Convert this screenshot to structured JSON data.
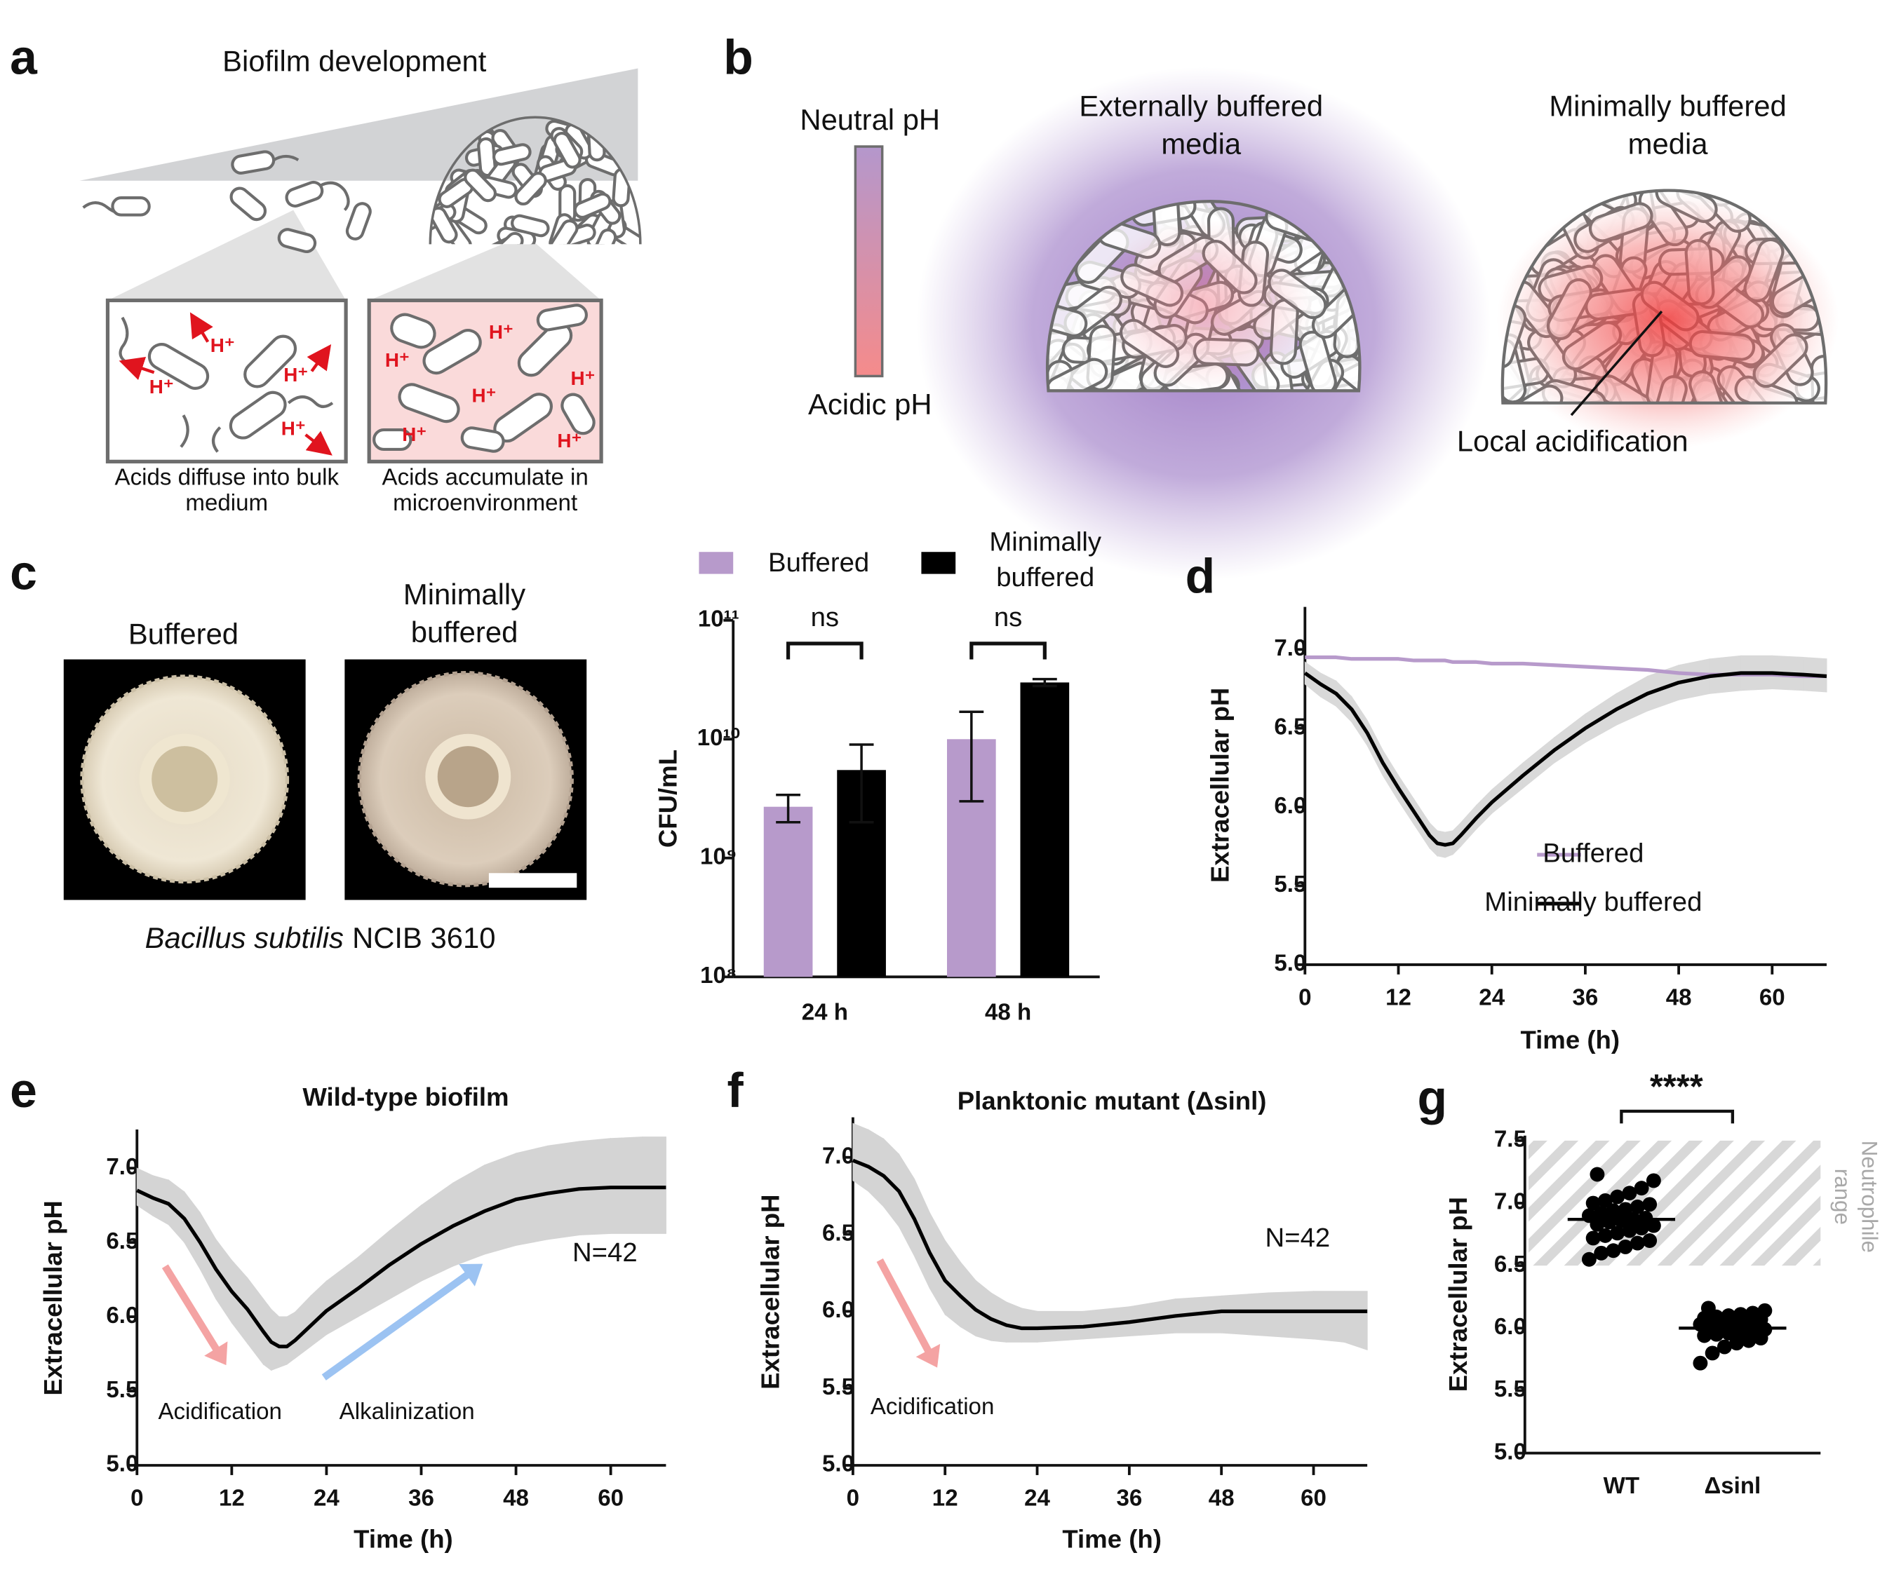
{
  "panels": {
    "a": {
      "label": "a",
      "title": "Biofilm development",
      "proton": "H⁺",
      "captions": [
        "Acids diffuse into bulk medium",
        "Acids accumulate in microenvironment"
      ]
    },
    "b": {
      "label": "b",
      "scale_top": "Neutral pH",
      "scale_bottom": "Acidic pH",
      "conditions": [
        "Externally buffered media",
        "Minimally buffered media"
      ],
      "annotation": "Local acidification"
    },
    "c": {
      "label": "c",
      "images": [
        "Buffered",
        "Minimally buffered"
      ],
      "species": "Bacillus subtilis",
      "strain": "NCIB 3610"
    },
    "d": {
      "label": "d"
    },
    "e": {
      "label": "e"
    },
    "f": {
      "label": "f"
    },
    "g": {
      "label": "g"
    }
  },
  "chart_data": [
    {
      "type": "bar",
      "log_scale": true,
      "ylabel": "CFU/mL",
      "categories": [
        "24 h",
        "48 h"
      ],
      "series": [
        {
          "name": "Buffered",
          "color": "#b79acb",
          "values": [
            2700000000,
            10000000000
          ],
          "errors": [
            700000000,
            7000000000
          ]
        },
        {
          "name": "Minimally buffered",
          "color": "#000000",
          "values": [
            5500000000,
            30000000000
          ],
          "errors": [
            3500000000,
            2000000000
          ]
        }
      ],
      "ylim": [
        100000000,
        100000000000
      ],
      "yticks": [
        {
          "value": 100000000,
          "label": "10⁸"
        },
        {
          "value": 1000000000,
          "label": "10⁹"
        },
        {
          "value": 10000000000,
          "label": "10¹⁰"
        },
        {
          "value": 100000000000,
          "label": "10¹¹"
        }
      ],
      "comparisons": [
        "ns",
        "ns"
      ],
      "legend": "top"
    },
    {
      "type": "line",
      "xlabel": "Time (h)",
      "ylabel": "Extracellular pH",
      "x": [
        0,
        2,
        4,
        6,
        8,
        10,
        12,
        14,
        16,
        17,
        18,
        19,
        20,
        22,
        24,
        28,
        32,
        36,
        40,
        44,
        48,
        52,
        56,
        60,
        64,
        67
      ],
      "series": [
        {
          "name": "Buffered",
          "color": "#b79acb",
          "values": [
            6.95,
            6.95,
            6.95,
            6.94,
            6.94,
            6.94,
            6.94,
            6.93,
            6.93,
            6.93,
            6.93,
            6.92,
            6.92,
            6.92,
            6.91,
            6.91,
            6.9,
            6.89,
            6.88,
            6.87,
            6.85,
            6.84,
            6.84,
            6.84,
            6.83,
            6.83
          ]
        },
        {
          "name": "Minimally buffered",
          "color": "#000000",
          "values": [
            6.85,
            6.78,
            6.72,
            6.62,
            6.47,
            6.28,
            6.12,
            5.97,
            5.82,
            5.77,
            5.76,
            5.77,
            5.82,
            5.93,
            6.03,
            6.2,
            6.36,
            6.5,
            6.62,
            6.72,
            6.79,
            6.83,
            6.85,
            6.85,
            6.84,
            6.83
          ],
          "envelope": {
            "color": "#d9d9d9",
            "low": [
              6.78,
              6.7,
              6.64,
              6.54,
              6.39,
              6.2,
              6.04,
              5.89,
              5.74,
              5.69,
              5.68,
              5.7,
              5.75,
              5.86,
              5.96,
              6.12,
              6.28,
              6.41,
              6.52,
              6.61,
              6.68,
              6.72,
              6.74,
              6.75,
              6.74,
              6.73
            ],
            "high": [
              6.92,
              6.85,
              6.8,
              6.7,
              6.55,
              6.36,
              6.2,
              6.05,
              5.9,
              5.85,
              5.84,
              5.85,
              5.9,
              6.01,
              6.11,
              6.28,
              6.44,
              6.59,
              6.72,
              6.83,
              6.9,
              6.94,
              6.96,
              6.96,
              6.95,
              6.94
            ]
          }
        }
      ],
      "xlim": [
        0,
        67
      ],
      "ylim": [
        5,
        7.27
      ],
      "xticks": [
        0,
        12,
        24,
        36,
        48,
        60
      ],
      "yticks": [
        {
          "value": 5,
          "label": "5.0"
        },
        5.5,
        {
          "value": 6,
          "label": "6.0"
        },
        6.5,
        {
          "value": 7,
          "label": "7.0"
        }
      ],
      "legend": "lower right"
    },
    {
      "type": "line",
      "title": "Wild-type biofilm",
      "xlabel": "Time (h)",
      "ylabel": "Extracellular pH",
      "x": [
        0,
        2,
        4,
        6,
        8,
        10,
        12,
        14,
        16,
        17,
        18,
        19,
        20,
        22,
        24,
        28,
        32,
        36,
        40,
        44,
        48,
        52,
        56,
        60,
        64,
        67
      ],
      "series": [
        {
          "color": "#000000",
          "values": [
            6.85,
            6.8,
            6.76,
            6.66,
            6.5,
            6.32,
            6.17,
            6.05,
            5.9,
            5.83,
            5.8,
            5.8,
            5.84,
            5.94,
            6.04,
            6.19,
            6.35,
            6.49,
            6.61,
            6.71,
            6.79,
            6.83,
            6.86,
            6.87,
            6.87,
            6.87
          ],
          "envelope": {
            "color": "#d4d4d4",
            "low": [
              6.75,
              6.68,
              6.62,
              6.5,
              6.32,
              6.12,
              5.96,
              5.82,
              5.68,
              5.64,
              5.66,
              5.68,
              5.72,
              5.8,
              5.88,
              6.0,
              6.12,
              6.24,
              6.34,
              6.42,
              6.48,
              6.52,
              6.55,
              6.56,
              6.56,
              6.56
            ],
            "high": [
              7.0,
              6.95,
              6.92,
              6.84,
              6.7,
              6.52,
              6.38,
              6.26,
              6.12,
              6.05,
              6.0,
              6.0,
              6.03,
              6.14,
              6.24,
              6.4,
              6.58,
              6.75,
              6.9,
              7.02,
              7.1,
              7.15,
              7.18,
              7.2,
              7.21,
              7.21
            ]
          }
        }
      ],
      "xlim": [
        0,
        67
      ],
      "ylim": [
        5,
        7.26
      ],
      "xticks": [
        0,
        12,
        24,
        36,
        48,
        60
      ],
      "yticks": [
        {
          "value": 5,
          "label": "5.0"
        },
        5.5,
        {
          "value": 6,
          "label": "6.0"
        },
        6.5,
        {
          "value": 7,
          "label": "7.0"
        }
      ],
      "annotations": [
        {
          "text": "Acidification",
          "color": "#f4a3a3"
        },
        {
          "text": "Alkalinization",
          "color": "#9cc3f2"
        }
      ],
      "n_label": "N=42"
    },
    {
      "type": "line",
      "title": "Planktonic mutant (Δsinl)",
      "xlabel": "Time (h)",
      "ylabel": "Extracellular pH",
      "x": [
        0,
        2,
        4,
        6,
        8,
        10,
        12,
        14,
        16,
        18,
        20,
        22,
        24,
        30,
        36,
        42,
        48,
        54,
        60,
        64,
        67
      ],
      "series": [
        {
          "color": "#000000",
          "values": [
            6.98,
            6.94,
            6.88,
            6.78,
            6.6,
            6.38,
            6.2,
            6.1,
            6.01,
            5.95,
            5.91,
            5.89,
            5.89,
            5.9,
            5.93,
            5.97,
            6.0,
            6.0,
            6.0,
            6.0,
            6.0
          ],
          "envelope": {
            "color": "#d4d4d4",
            "low": [
              6.85,
              6.78,
              6.68,
              6.55,
              6.36,
              6.15,
              5.98,
              5.9,
              5.84,
              5.81,
              5.8,
              5.8,
              5.8,
              5.82,
              5.84,
              5.86,
              5.86,
              5.84,
              5.82,
              5.8,
              5.75
            ],
            "high": [
              7.22,
              7.18,
              7.12,
              7.02,
              6.86,
              6.64,
              6.46,
              6.32,
              6.2,
              6.12,
              6.06,
              6.02,
              6.0,
              6.0,
              6.03,
              6.08,
              6.1,
              6.12,
              6.13,
              6.13,
              6.13
            ]
          }
        }
      ],
      "xlim": [
        0,
        67
      ],
      "ylim": [
        5,
        7.26
      ],
      "xticks": [
        0,
        12,
        24,
        36,
        48,
        60
      ],
      "yticks": [
        {
          "value": 5,
          "label": "5.0"
        },
        5.5,
        {
          "value": 6,
          "label": "6.0"
        },
        6.5,
        {
          "value": 7,
          "label": "7.0"
        }
      ],
      "annotations": [
        {
          "text": "Acidification",
          "color": "#f4a3a3"
        }
      ],
      "n_label": "N=42"
    },
    {
      "type": "strip",
      "ylabel": "Extracellular pH",
      "categories": [
        "WT",
        "Δsinl"
      ],
      "color": "#000000",
      "points": [
        [
          6.55,
          6.6,
          6.62,
          6.65,
          6.68,
          6.7,
          6.72,
          6.74,
          6.76,
          6.78,
          6.8,
          6.82,
          6.83,
          6.85,
          6.86,
          6.87,
          6.88,
          6.9,
          6.92,
          6.94,
          6.95,
          6.97,
          6.99,
          7.0,
          7.02,
          7.05,
          7.08,
          7.12,
          7.18,
          7.23
        ],
        [
          5.72,
          5.8,
          5.85,
          5.88,
          5.9,
          5.92,
          5.94,
          5.95,
          5.96,
          5.97,
          5.98,
          5.99,
          6.0,
          6.0,
          6.01,
          6.02,
          6.02,
          6.03,
          6.04,
          6.05,
          6.05,
          6.06,
          6.07,
          6.08,
          6.09,
          6.1,
          6.11,
          6.12,
          6.14,
          6.16
        ]
      ],
      "means": [
        6.87,
        6.0
      ],
      "ylim": [
        5,
        7.54
      ],
      "yticks": [
        {
          "value": 5,
          "label": "5.0"
        },
        5.5,
        {
          "value": 6,
          "label": "6.0"
        },
        6.5,
        {
          "value": 7,
          "label": "7.0"
        },
        7.5
      ],
      "shaded_range": [
        6.5,
        7.5
      ],
      "shaded_label": "Neutrophile range",
      "significance": "****"
    }
  ]
}
